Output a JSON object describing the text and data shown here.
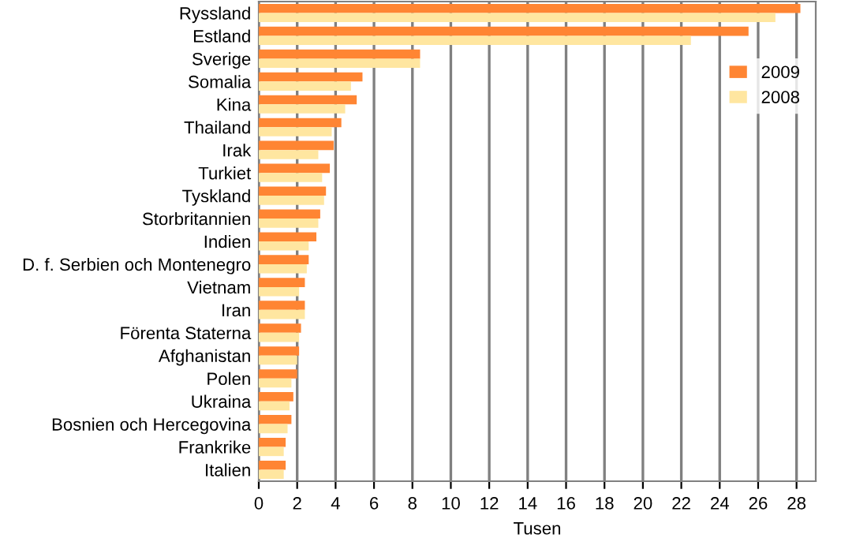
{
  "chart_data": {
    "type": "bar",
    "orientation": "horizontal",
    "xlabel": "Tusen",
    "categories": [
      "Ryssland",
      "Estland",
      "Sverige",
      "Somalia",
      "Kina",
      "Thailand",
      "Irak",
      "Turkiet",
      "Tyskland",
      "Storbritannien",
      "Indien",
      "D. f. Serbien och Montenegro",
      "Vietnam",
      "Iran",
      "Förenta Staterna",
      "Afghanistan",
      "Polen",
      "Ukraina",
      "Bosnien och Hercegovina",
      "Frankrike",
      "Italien"
    ],
    "series": [
      {
        "name": "2009",
        "color": "#ff8533",
        "values": [
          28.2,
          25.5,
          8.4,
          5.4,
          5.1,
          4.3,
          3.9,
          3.7,
          3.5,
          3.2,
          3.0,
          2.6,
          2.4,
          2.4,
          2.2,
          2.1,
          2.0,
          1.8,
          1.7,
          1.4,
          1.4
        ]
      },
      {
        "name": "2008",
        "color": "#ffe6a0",
        "values": [
          26.9,
          22.5,
          8.4,
          4.8,
          4.5,
          3.8,
          3.1,
          3.3,
          3.4,
          3.1,
          2.6,
          2.5,
          2.1,
          2.4,
          2.1,
          2.0,
          1.7,
          1.6,
          1.5,
          1.3,
          1.3
        ]
      }
    ],
    "xlim": [
      0,
      29
    ],
    "xticks": [
      0,
      2,
      4,
      6,
      8,
      10,
      12,
      14,
      16,
      18,
      20,
      22,
      24,
      26,
      28
    ],
    "grid": "x",
    "legend": "top right"
  }
}
